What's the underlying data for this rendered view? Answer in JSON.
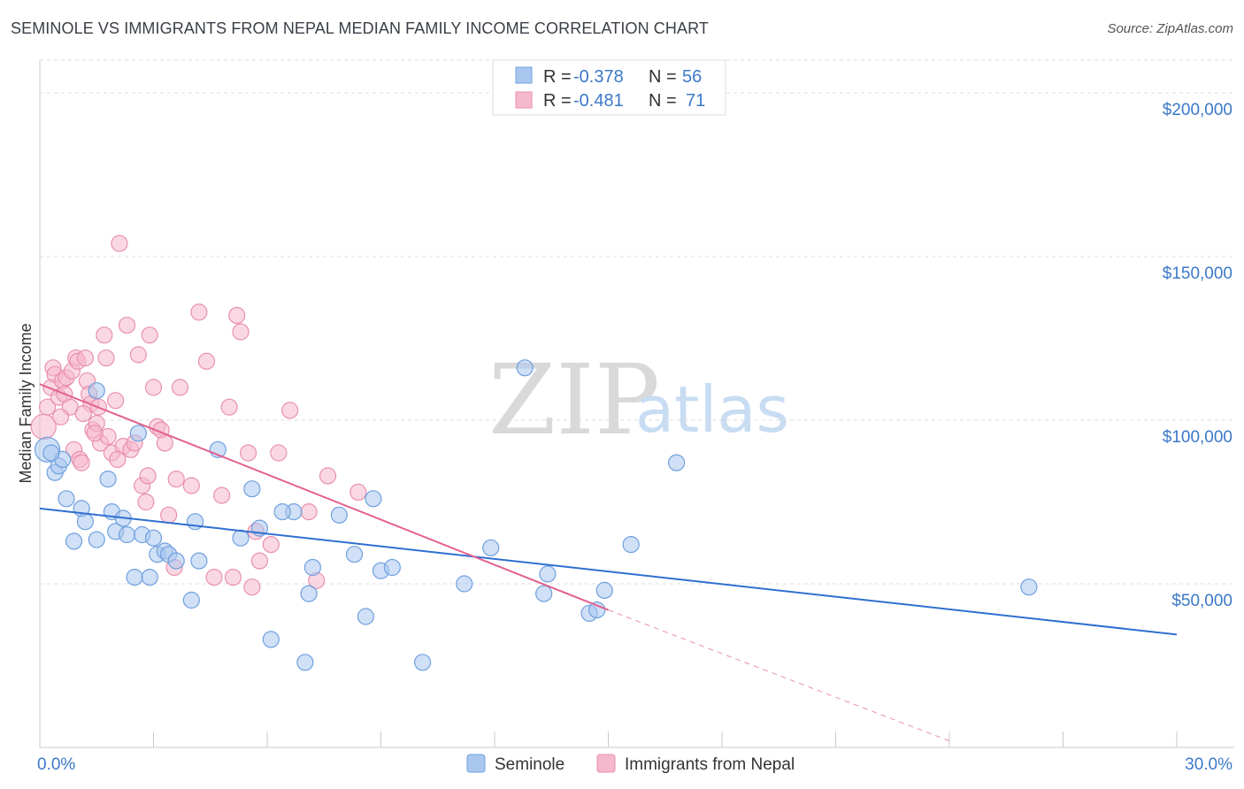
{
  "title": "SEMINOLE VS IMMIGRANTS FROM NEPAL MEDIAN FAMILY INCOME CORRELATION CHART",
  "source": "Source: ZipAtlas.com",
  "watermark": {
    "zip": "ZIP",
    "atlas": "atlas"
  },
  "colors": {
    "blue": "#3b78c8",
    "pink": "#e3628f",
    "blue_fill": "#a9c7ee",
    "pink_fill": "#f5b8cc"
  },
  "legend": {
    "rows": [
      {
        "r_label": "R =",
        "r_value": "-0.378",
        "n_label": "N =",
        "n_value": "56"
      },
      {
        "r_label": "R =",
        "r_value": "-0.481",
        "n_label": "N =",
        "n_value": "71"
      }
    ]
  },
  "chart_data": {
    "type": "scatter",
    "title": "SEMINOLE VS IMMIGRANTS FROM NEPAL MEDIAN FAMILY INCOME CORRELATION CHART",
    "xlabel": "",
    "ylabel": "Median Family Income",
    "xlim": [
      0,
      30
    ],
    "ylim": [
      0,
      210000
    ],
    "x_tick_labels": [
      "0.0%",
      "30.0%"
    ],
    "y_ticks": [
      50000,
      100000,
      150000,
      200000
    ],
    "y_tick_labels": [
      "$50,000",
      "$100,000",
      "$150,000",
      "$200,000"
    ],
    "series": [
      {
        "name": "Seminole",
        "r": -0.378,
        "n": 56,
        "trend": {
          "x": [
            0,
            30
          ],
          "y": [
            73000,
            34500
          ]
        },
        "points": [
          [
            0.2,
            91000
          ],
          [
            0.4,
            84000
          ],
          [
            0.5,
            86000
          ],
          [
            0.6,
            88000
          ],
          [
            0.7,
            76000
          ],
          [
            0.9,
            63000
          ],
          [
            1.1,
            73000
          ],
          [
            1.2,
            69000
          ],
          [
            1.5,
            63500
          ],
          [
            1.5,
            109000
          ],
          [
            1.8,
            82000
          ],
          [
            1.9,
            72000
          ],
          [
            2.0,
            66000
          ],
          [
            2.2,
            70000
          ],
          [
            2.3,
            65000
          ],
          [
            2.5,
            52000
          ],
          [
            2.6,
            96000
          ],
          [
            2.7,
            65000
          ],
          [
            2.9,
            52000
          ],
          [
            3.0,
            64000
          ],
          [
            3.1,
            59000
          ],
          [
            3.3,
            60000
          ],
          [
            3.4,
            59000
          ],
          [
            3.6,
            57000
          ],
          [
            4.0,
            45000
          ],
          [
            4.1,
            69000
          ],
          [
            4.7,
            91000
          ],
          [
            5.3,
            64000
          ],
          [
            5.6,
            79000
          ],
          [
            5.8,
            67000
          ],
          [
            6.1,
            33000
          ],
          [
            6.7,
            72000
          ],
          [
            7.0,
            26000
          ],
          [
            7.1,
            47000
          ],
          [
            7.2,
            55000
          ],
          [
            7.9,
            71000
          ],
          [
            8.3,
            59000
          ],
          [
            8.6,
            40000
          ],
          [
            8.8,
            76000
          ],
          [
            9.0,
            54000
          ],
          [
            9.3,
            55000
          ],
          [
            10.1,
            26000
          ],
          [
            11.2,
            50000
          ],
          [
            11.9,
            61000
          ],
          [
            12.8,
            116000
          ],
          [
            13.3,
            47000
          ],
          [
            13.4,
            53000
          ],
          [
            14.5,
            41000
          ],
          [
            14.7,
            42000
          ],
          [
            14.9,
            48000
          ],
          [
            15.6,
            62000
          ],
          [
            16.8,
            87000
          ],
          [
            26.1,
            49000
          ],
          [
            0.3,
            90000
          ],
          [
            4.2,
            57000
          ],
          [
            6.4,
            72000
          ]
        ]
      },
      {
        "name": "Immigrants from Nepal",
        "r": -0.481,
        "n": 71,
        "trend": {
          "x": [
            0,
            15
          ],
          "y": [
            111000,
            42000
          ],
          "dashed_x": [
            15,
            24
          ],
          "dashed_y": [
            42000,
            2000
          ]
        },
        "points": [
          [
            0.1,
            98000
          ],
          [
            0.2,
            104000
          ],
          [
            0.3,
            110000
          ],
          [
            0.35,
            116000
          ],
          [
            0.4,
            114000
          ],
          [
            0.5,
            107000
          ],
          [
            0.6,
            112000
          ],
          [
            0.65,
            108000
          ],
          [
            0.7,
            113000
          ],
          [
            0.8,
            104000
          ],
          [
            0.85,
            115000
          ],
          [
            0.9,
            91000
          ],
          [
            0.95,
            119000
          ],
          [
            1.0,
            118000
          ],
          [
            1.05,
            88000
          ],
          [
            1.1,
            87000
          ],
          [
            1.2,
            119000
          ],
          [
            1.25,
            112000
          ],
          [
            1.3,
            108000
          ],
          [
            1.35,
            105000
          ],
          [
            1.4,
            97000
          ],
          [
            1.5,
            99000
          ],
          [
            1.55,
            104000
          ],
          [
            1.6,
            93000
          ],
          [
            1.7,
            126000
          ],
          [
            1.75,
            119000
          ],
          [
            1.8,
            95000
          ],
          [
            1.9,
            90000
          ],
          [
            2.0,
            106000
          ],
          [
            2.1,
            154000
          ],
          [
            2.2,
            92000
          ],
          [
            2.3,
            129000
          ],
          [
            2.4,
            91000
          ],
          [
            2.5,
            93000
          ],
          [
            2.6,
            120000
          ],
          [
            2.7,
            80000
          ],
          [
            2.8,
            75000
          ],
          [
            2.9,
            126000
          ],
          [
            3.0,
            110000
          ],
          [
            3.1,
            98000
          ],
          [
            3.2,
            97000
          ],
          [
            3.3,
            93000
          ],
          [
            3.4,
            71000
          ],
          [
            3.6,
            82000
          ],
          [
            3.7,
            110000
          ],
          [
            4.0,
            80000
          ],
          [
            4.2,
            133000
          ],
          [
            4.4,
            118000
          ],
          [
            4.6,
            52000
          ],
          [
            4.8,
            77000
          ],
          [
            5.0,
            104000
          ],
          [
            5.1,
            52000
          ],
          [
            5.2,
            132000
          ],
          [
            5.3,
            127000
          ],
          [
            5.5,
            90000
          ],
          [
            5.6,
            49000
          ],
          [
            5.7,
            66000
          ],
          [
            5.8,
            57000
          ],
          [
            6.1,
            62000
          ],
          [
            6.3,
            90000
          ],
          [
            6.6,
            103000
          ],
          [
            7.1,
            72000
          ],
          [
            7.3,
            51000
          ],
          [
            7.6,
            83000
          ],
          [
            8.4,
            78000
          ],
          [
            1.45,
            96000
          ],
          [
            2.05,
            88000
          ],
          [
            3.55,
            55000
          ],
          [
            0.55,
            101000
          ],
          [
            1.15,
            102000
          ],
          [
            2.85,
            83000
          ]
        ]
      }
    ],
    "legend_position": "bottom-center"
  }
}
